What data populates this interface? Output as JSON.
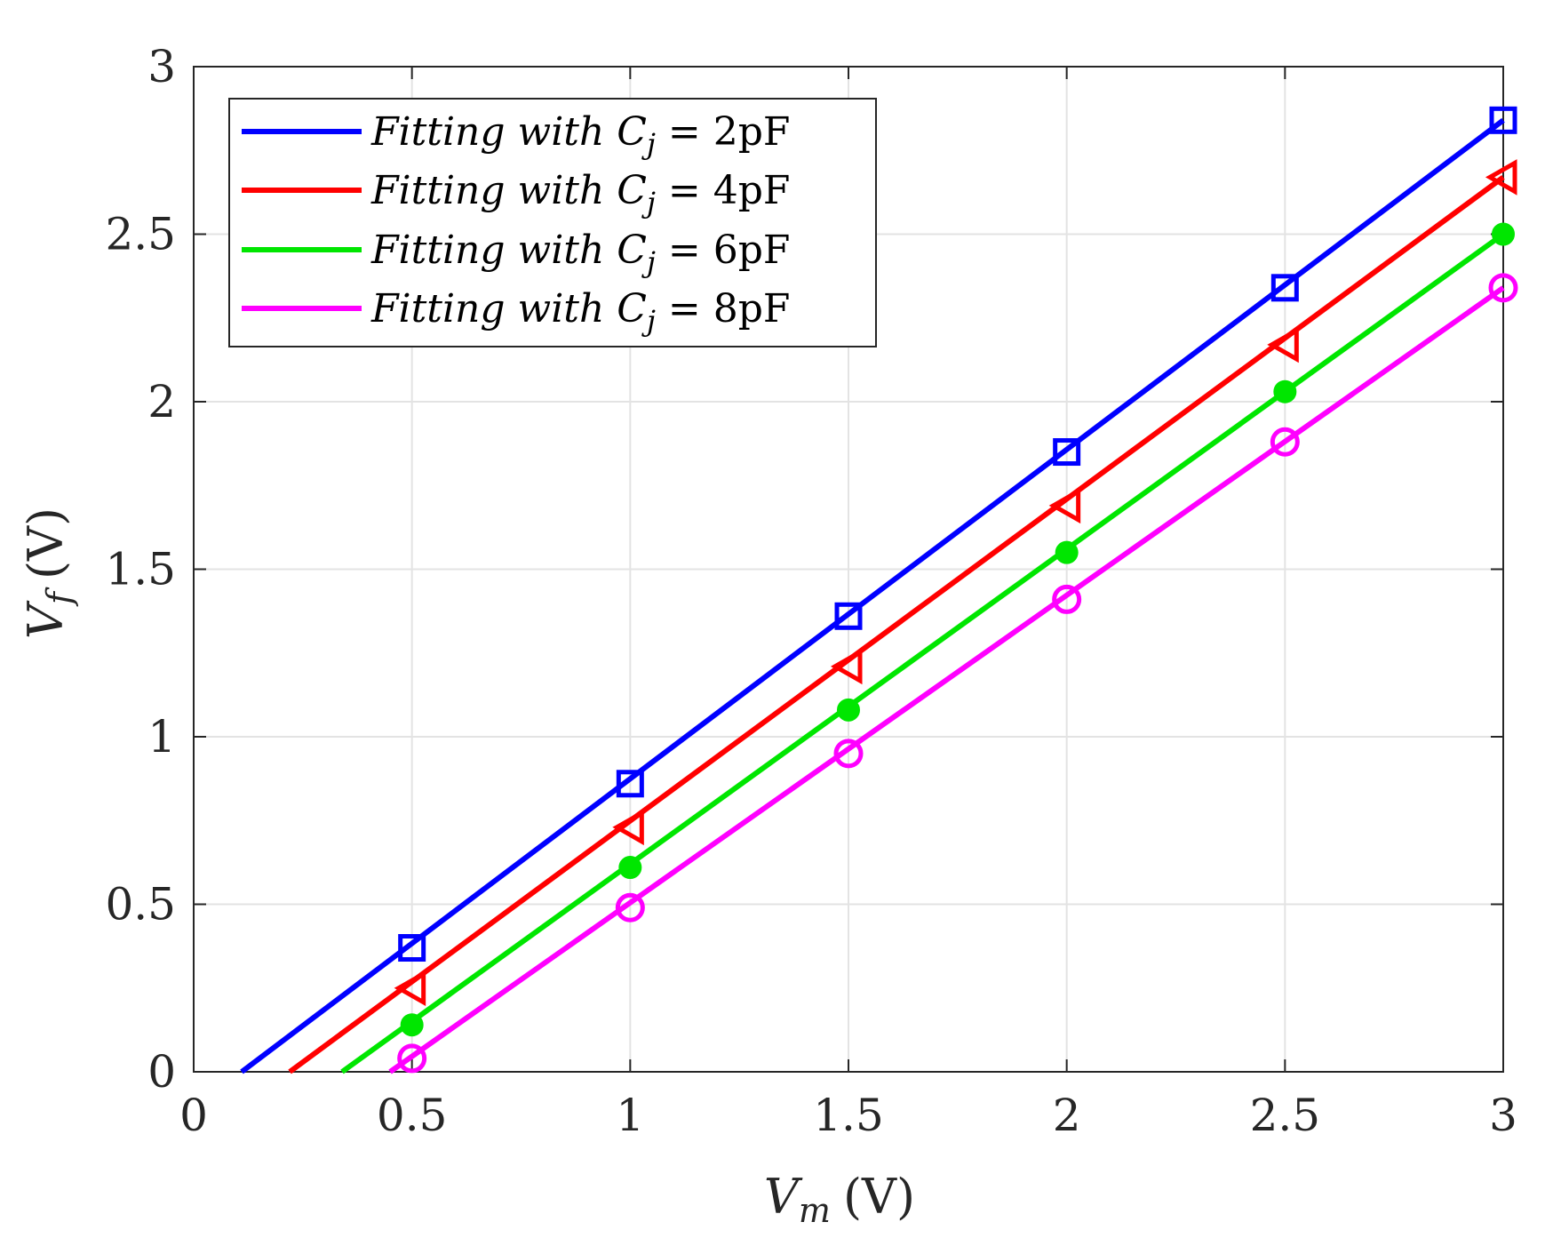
{
  "chart_data": {
    "type": "line",
    "title": "",
    "xlabel": {
      "symbol": "V",
      "subscript": "m",
      "unit": "(V)"
    },
    "ylabel": {
      "symbol": "V",
      "subscript": "f",
      "unit": "(V)"
    },
    "xlim": [
      0,
      3
    ],
    "ylim": [
      0,
      3
    ],
    "xticks": [
      "0",
      "0.5",
      "1",
      "1.5",
      "2",
      "2.5",
      "3"
    ],
    "yticks": [
      "0",
      "0.5",
      "1",
      "1.5",
      "2",
      "2.5",
      "3"
    ],
    "grid": true,
    "legend_position": "top-left",
    "series": [
      {
        "name": "Fitting with C_j = 2pF",
        "label_prefix": "Fitting with ",
        "label_var": "C",
        "label_sub": "j",
        "label_value": " = 2pF",
        "color": "#0000ff",
        "marker": "square",
        "line_x": [
          0.11,
          3.0
        ],
        "line_y": [
          0.0,
          2.84
        ],
        "marker_x": [
          0.5,
          1.0,
          1.5,
          2.0,
          2.5,
          3.0
        ],
        "marker_y": [
          0.37,
          0.86,
          1.36,
          1.85,
          2.34,
          2.84
        ]
      },
      {
        "name": "Fitting with C_j = 4pF",
        "label_prefix": "Fitting with ",
        "label_var": "C",
        "label_sub": "j",
        "label_value": " = 4pF",
        "color": "#ff0000",
        "marker": "triangle-left",
        "line_x": [
          0.22,
          3.0
        ],
        "line_y": [
          0.0,
          2.67
        ],
        "marker_x": [
          0.5,
          1.0,
          1.5,
          2.0,
          2.5,
          3.0
        ],
        "marker_y": [
          0.25,
          0.73,
          1.21,
          1.69,
          2.17,
          2.67
        ]
      },
      {
        "name": "Fitting with C_j = 6pF",
        "label_prefix": "Fitting with ",
        "label_var": "C",
        "label_sub": "j",
        "label_value": " = 6pF",
        "color": "#00e600",
        "marker": "filled-circle",
        "line_x": [
          0.34,
          3.0
        ],
        "line_y": [
          0.0,
          2.5
        ],
        "marker_x": [
          0.5,
          1.0,
          1.5,
          2.0,
          2.5,
          3.0
        ],
        "marker_y": [
          0.14,
          0.61,
          1.08,
          1.55,
          2.03,
          2.5
        ]
      },
      {
        "name": "Fitting with C_j = 8pF",
        "label_prefix": "Fitting with ",
        "label_var": "C",
        "label_sub": "j",
        "label_value": " = 8pF",
        "color": "#ff00ff",
        "marker": "open-circle",
        "line_x": [
          0.45,
          3.0
        ],
        "line_y": [
          0.0,
          2.34
        ],
        "marker_x": [
          0.5,
          1.0,
          1.5,
          2.0,
          2.5,
          3.0
        ],
        "marker_y": [
          0.04,
          0.49,
          0.95,
          1.41,
          1.88,
          2.34
        ]
      }
    ]
  }
}
